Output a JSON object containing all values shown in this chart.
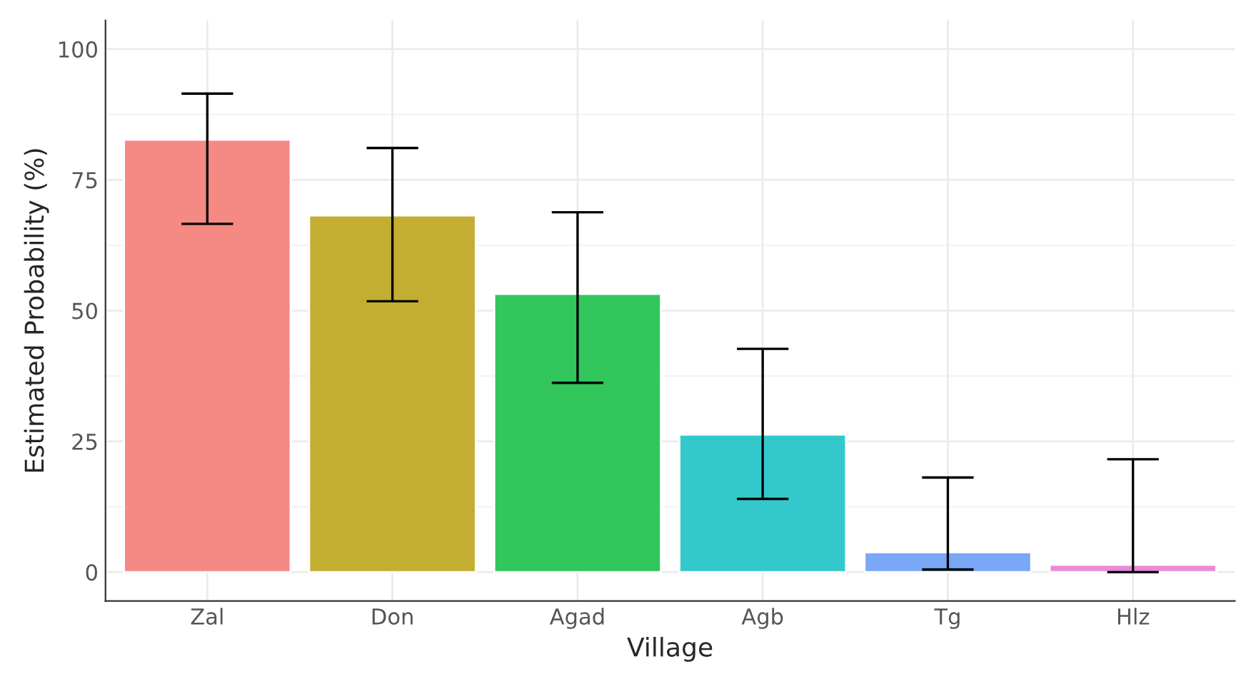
{
  "chart_data": {
    "type": "bar",
    "xlabel": "Village",
    "ylabel": "Estimated Probability (%)",
    "categories": [
      "Zal",
      "Don",
      "Agad",
      "Agb",
      "Tg",
      "Hlz"
    ],
    "values": [
      82.7,
      68.2,
      53.2,
      26.3,
      3.8,
      1.4
    ],
    "colors": [
      "#f58a84",
      "#c4ae32",
      "#32c65c",
      "#33c9cc",
      "#7aa7f6",
      "#e98ad8"
    ],
    "errors": [
      [
        66.6,
        91.5
      ],
      [
        51.8,
        81.1
      ],
      [
        36.2,
        68.8
      ],
      [
        14.0,
        42.7
      ],
      [
        0.5,
        18.1
      ],
      [
        0,
        21.6
      ]
    ],
    "ylim": [
      -5.5,
      105.5
    ],
    "yticks": [
      0,
      25,
      50,
      75,
      100
    ],
    "grid": true
  }
}
